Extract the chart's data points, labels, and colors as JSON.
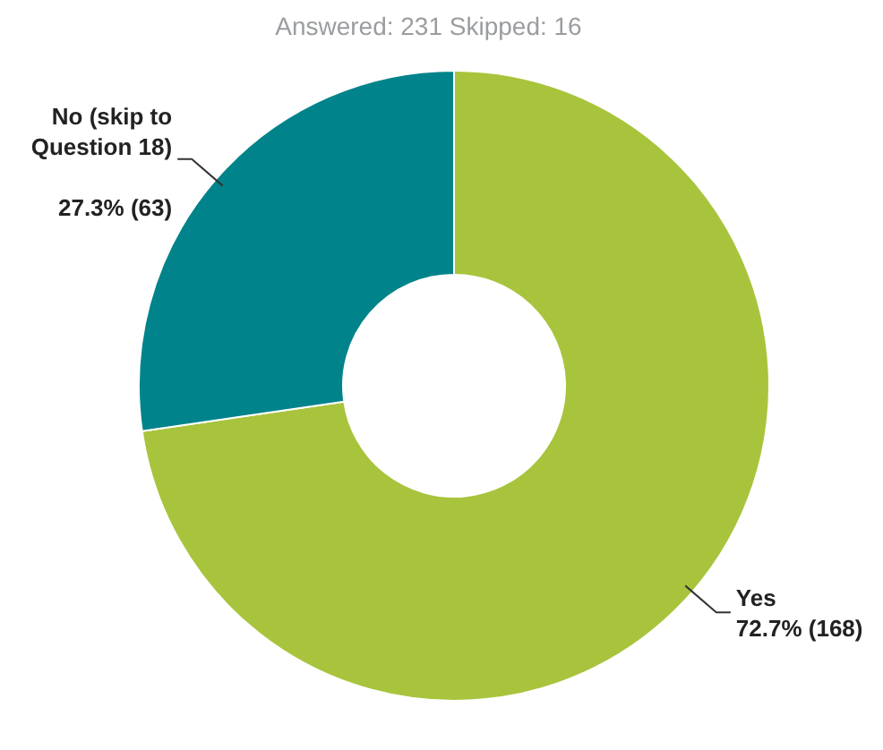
{
  "chart_data": {
    "type": "donut",
    "title": "Answered: 231     Skipped: 16",
    "categories": [
      "Yes",
      "No (skip to Question 18)"
    ],
    "values": [
      72.7,
      27.3
    ],
    "colors": [
      "#a8c43c",
      "#00838a"
    ],
    "value_labels": [
      "72.7% (168)",
      "27.3% (63)"
    ]
  }
}
